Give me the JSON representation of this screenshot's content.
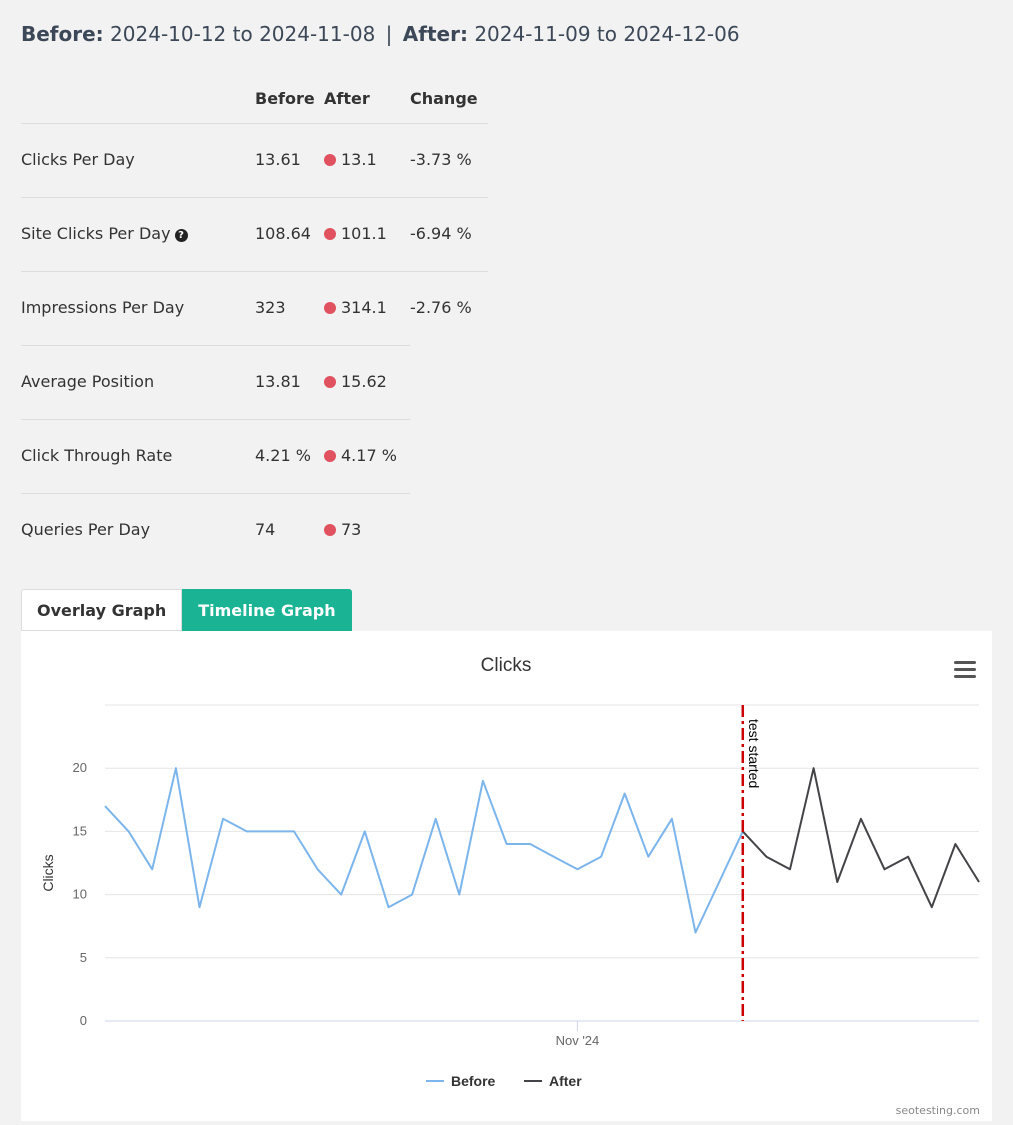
{
  "period": {
    "before_label": "Before:",
    "before_range": "2024-10-12 to 2024-11-08",
    "separator": "|",
    "after_label": "After:",
    "after_range": "2024-11-09 to 2024-12-06"
  },
  "metrics_table": {
    "headers": {
      "metric": "",
      "before": "Before",
      "after": "After",
      "change": "Change"
    },
    "rows": [
      {
        "metric": "Clicks Per Day",
        "before": "13.61",
        "after": "13.1",
        "change": "-3.73 %",
        "status_color": "#e05260"
      },
      {
        "metric": "Site Clicks Per Day",
        "help_icon": "question-circle-icon",
        "before": "108.64",
        "after": "101.1",
        "change": "-6.94 %",
        "status_color": "#e05260"
      },
      {
        "metric": "Impressions Per Day",
        "before": "323",
        "after": "314.1",
        "change": "-2.76 %",
        "status_color": "#e05260"
      },
      {
        "metric": "Average Position",
        "before": "13.81",
        "after": "15.62",
        "change": "",
        "status_color": "#e05260"
      },
      {
        "metric": "Click Through Rate",
        "before": "4.21 %",
        "after": "4.17 %",
        "change": "",
        "status_color": "#e05260"
      },
      {
        "metric": "Queries Per Day",
        "before": "74",
        "after": "73",
        "change": "",
        "status_color": "#e05260"
      }
    ]
  },
  "tabs": [
    {
      "label": "Overlay Graph",
      "active": false
    },
    {
      "label": "Timeline Graph",
      "active": true
    }
  ],
  "menu_icon": "hamburger-menu-icon",
  "credit": "seotesting.com",
  "colors": {
    "accent": "#1ab394",
    "negative": "#e05260",
    "before_series": "#7cb5ec",
    "after_series": "#434348",
    "marker_line": "#cc0000"
  },
  "chart_data": {
    "type": "line",
    "title": "Clicks",
    "ylabel": "Clicks",
    "xlabel": "",
    "x_start": "2024-10-12",
    "x_end": "2024-12-06",
    "ylim": [
      0,
      25
    ],
    "y_ticks": [
      0,
      5,
      10,
      15,
      20
    ],
    "x_tick_labels": [
      {
        "date": "2024-11-01",
        "label": "Nov '24"
      }
    ],
    "grid": true,
    "legend_position": "bottom-center",
    "series": [
      {
        "name": "Before",
        "color": "#7cb5ec",
        "points": [
          [
            "2024-10-12",
            17
          ],
          [
            "2024-10-13",
            15
          ],
          [
            "2024-10-14",
            12
          ],
          [
            "2024-10-15",
            20
          ],
          [
            "2024-10-16",
            9
          ],
          [
            "2024-10-17",
            16
          ],
          [
            "2024-10-18",
            15
          ],
          [
            "2024-10-19",
            15
          ],
          [
            "2024-10-20",
            15
          ],
          [
            "2024-10-21",
            12
          ],
          [
            "2024-10-22",
            10
          ],
          [
            "2024-10-23",
            15
          ],
          [
            "2024-10-24",
            9
          ],
          [
            "2024-10-25",
            10
          ],
          [
            "2024-10-26",
            16
          ],
          [
            "2024-10-27",
            10
          ],
          [
            "2024-10-28",
            19
          ],
          [
            "2024-10-29",
            14
          ],
          [
            "2024-10-30",
            14
          ],
          [
            "2024-10-31",
            13
          ],
          [
            "2024-11-01",
            12
          ],
          [
            "2024-11-02",
            13
          ],
          [
            "2024-11-03",
            18
          ],
          [
            "2024-11-04",
            13
          ],
          [
            "2024-11-05",
            16
          ],
          [
            "2024-11-06",
            7
          ],
          [
            "2024-11-07",
            11
          ],
          [
            "2024-11-08",
            15
          ]
        ]
      },
      {
        "name": "After",
        "color": "#434348",
        "points": [
          [
            "2024-11-08",
            15
          ],
          [
            "2024-11-09",
            13
          ],
          [
            "2024-11-10",
            12
          ],
          [
            "2024-11-11",
            20
          ],
          [
            "2024-11-12",
            11
          ],
          [
            "2024-11-13",
            16
          ],
          [
            "2024-11-14",
            12
          ],
          [
            "2024-11-15",
            13
          ],
          [
            "2024-11-16",
            9
          ],
          [
            "2024-11-17",
            14
          ],
          [
            "2024-11-18",
            11
          ]
        ]
      }
    ],
    "annotations": [
      {
        "type": "vertical-line",
        "date": "2024-11-08",
        "label": "test started",
        "color": "#cc0000"
      }
    ]
  }
}
